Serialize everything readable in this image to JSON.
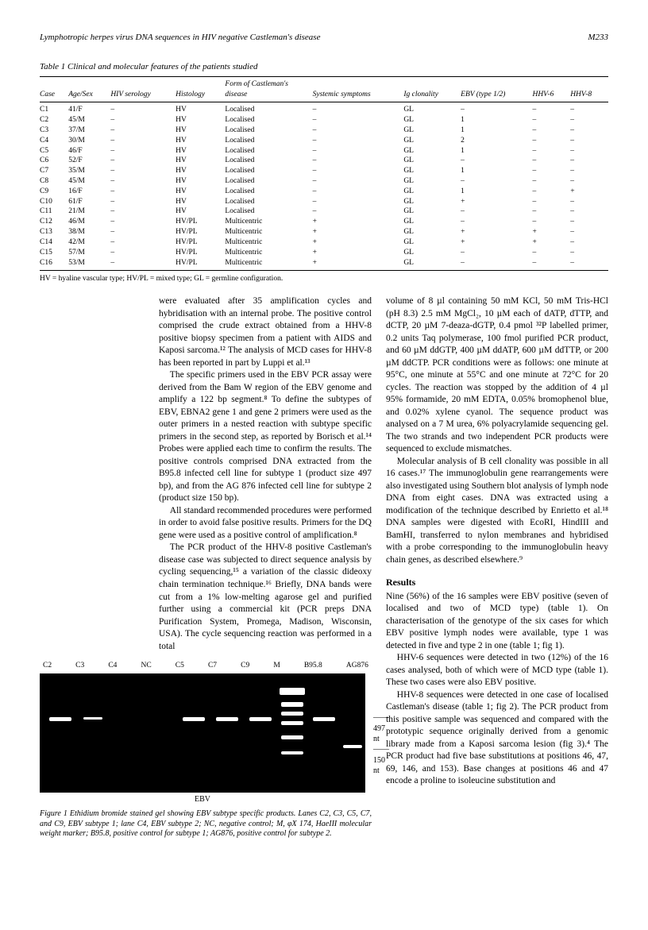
{
  "header": {
    "left": "Lymphotropic herpes virus DNA sequences in HIV negative Castleman's disease",
    "right": "M233"
  },
  "table1": {
    "caption": "Table 1   Clinical and molecular features of the patients studied",
    "columns": [
      "Case",
      "Age/Sex",
      "HIV serology",
      "Histology",
      "Form of Castleman's disease",
      "Systemic symptoms",
      "Ig clonality",
      "EBV (type 1/2)",
      "HHV-6",
      "HHV-8"
    ],
    "rows": [
      [
        "C1",
        "41/F",
        "–",
        "HV",
        "Localised",
        "–",
        "GL",
        "–",
        "–",
        "–"
      ],
      [
        "C2",
        "45/M",
        "–",
        "HV",
        "Localised",
        "–",
        "GL",
        "1",
        "–",
        "–"
      ],
      [
        "C3",
        "37/M",
        "–",
        "HV",
        "Localised",
        "–",
        "GL",
        "1",
        "–",
        "–"
      ],
      [
        "C4",
        "30/M",
        "–",
        "HV",
        "Localised",
        "–",
        "GL",
        "2",
        "–",
        "–"
      ],
      [
        "C5",
        "46/F",
        "–",
        "HV",
        "Localised",
        "–",
        "GL",
        "1",
        "–",
        "–"
      ],
      [
        "C6",
        "52/F",
        "–",
        "HV",
        "Localised",
        "–",
        "GL",
        "–",
        "–",
        "–"
      ],
      [
        "C7",
        "35/M",
        "–",
        "HV",
        "Localised",
        "–",
        "GL",
        "1",
        "–",
        "–"
      ],
      [
        "C8",
        "45/M",
        "–",
        "HV",
        "Localised",
        "–",
        "GL",
        "–",
        "–",
        "–"
      ],
      [
        "C9",
        "16/F",
        "–",
        "HV",
        "Localised",
        "–",
        "GL",
        "1",
        "–",
        "+"
      ],
      [
        "C10",
        "61/F",
        "–",
        "HV",
        "Localised",
        "–",
        "GL",
        "+",
        "–",
        "–"
      ],
      [
        "C11",
        "21/M",
        "–",
        "HV",
        "Localised",
        "–",
        "GL",
        "–",
        "–",
        "–"
      ],
      [
        "C12",
        "46/M",
        "–",
        "HV/PL",
        "Multicentric",
        "+",
        "GL",
        "–",
        "–",
        "–"
      ],
      [
        "C13",
        "38/M",
        "–",
        "HV/PL",
        "Multicentric",
        "+",
        "GL",
        "+",
        "+",
        "–"
      ],
      [
        "C14",
        "42/M",
        "–",
        "HV/PL",
        "Multicentric",
        "+",
        "GL",
        "+",
        "+",
        "–"
      ],
      [
        "C15",
        "57/M",
        "–",
        "HV/PL",
        "Multicentric",
        "+",
        "GL",
        "–",
        "–",
        "–"
      ],
      [
        "C16",
        "53/M",
        "–",
        "HV/PL",
        "Multicentric",
        "+",
        "GL",
        "–",
        "–",
        "–"
      ]
    ],
    "footnote": "HV = hyaline vascular type; HV/PL = mixed type; GL = germline configuration."
  },
  "column_left": {
    "p1": "were evaluated after 35 amplification cycles and hybridisation with an internal probe. The positive control comprised the crude extract obtained from a HHV-8 positive biopsy specimen from a patient with AIDS and Kaposi sarcoma.¹² The analysis of MCD cases for HHV-8 has been reported in part by Luppi et al.¹³",
    "p2": "The specific primers used in the EBV PCR assay were derived from the Bam W region of the EBV genome and amplify a 122 bp segment.⁸ To define the subtypes of EBV, EBNA2 gene 1 and gene 2 primers were used as the outer primers in a nested reaction with subtype specific primers in the second step, as reported by Borisch et al.¹⁴ Probes were applied each time to confirm the results. The positive controls comprised DNA extracted from the B95.8 infected cell line for subtype 1 (product size 497 bp), and from the AG 876 infected cell line for subtype 2 (product size 150 bp).",
    "p3": "All standard recommended procedures were performed in order to avoid false positive results. Primers for the DQ gene were used as a positive control of amplification.⁸",
    "p4": "The PCR product of the HHV-8 positive Castleman's disease case was subjected to direct sequence analysis by cycling sequencing,¹⁵ a variation of the classic dideoxy chain termination technique.¹⁶ Briefly, DNA bands were cut from a 1% low-melting agarose gel and purified further using a commercial kit (PCR preps DNA Purification System, Promega, Madison, Wisconsin, USA). The cycle sequencing reaction was performed in a total"
  },
  "column_right": {
    "p1": "volume of 8 µl containing 50 mM KCl, 50 mM Tris-HCl (pH 8.3) 2.5 mM MgCl₂, 10 µM each of dATP, dTTP, and dCTP, 20 µM 7-deaza-dGTP, 0.4 pmol ³²P labelled primer, 0.2 units Taq polymerase, 100 fmol purified PCR product, and 60 µM ddGTP, 400 µM ddATP, 600 µM ddTTP, or 200 µM ddCTP. PCR conditions were as follows: one minute at 95°C, one minute at 55°C and one minute at 72°C for 20 cycles. The reaction was stopped by the addition of 4 µl 95% formamide, 20 mM EDTA, 0.05% bromophenol blue, and 0.02% xylene cyanol. The sequence product was analysed on a 7 M urea, 6% polyacrylamide sequencing gel. The two strands and two independent PCR products were sequenced to exclude mismatches.",
    "p2": "Molecular analysis of B cell clonality was possible in all 16 cases.¹⁷ The immunoglobulin gene rearrangements were also investigated using Southern blot analysis of lymph node DNA from eight cases. DNA was extracted using a modification of the technique described by Enrietto et al.¹⁸ DNA samples were digested with EcoRI, HindIII and BamHI, transferred to nylon membranes and hybridised with a probe corresponding to the immunoglobulin heavy chain genes, as described elsewhere.⁹",
    "results_head": "Results",
    "p3": "Nine (56%) of the 16 samples were EBV positive (seven of localised and two of MCD type) (table 1). On characterisation of the genotype of the six cases for which EBV positive lymph nodes were available, type 1 was detected in five and type 2 in one (table 1; fig 1).",
    "p4": "HHV-6 sequences were detected in two (12%) of the 16 cases analysed, both of which were of MCD type (table 1). These two cases were also EBV positive.",
    "p5": "HHV-8 sequences were detected in one case of localised Castleman's disease (table 1; fig 2). The PCR product from this positive sample was sequenced and compared with the prototypic sequence originally derived from a genomic library made from a Kaposi sarcoma lesion (fig 3).⁴ The PCR product had five base substitutions at positions 46, 47, 69, 146, and 153). Base changes at positions 46 and 47 encode a proline to isoleucine substitution and"
  },
  "figure1": {
    "lanes": [
      "C2",
      "C3",
      "C4",
      "NC",
      "C5",
      "C7",
      "C9",
      "M",
      "B95.8",
      "AG876"
    ],
    "marker497": "497 nt",
    "marker150": "150 nt",
    "bottom_label": "EBV",
    "caption": "Figure 1   Ethidium bromide stained gel showing EBV subtype specific products. Lanes C2, C3, C5, C7, and C9, EBV subtype 1; lane C4, EBV subtype 2; NC, negative control; M, φX 174, HaeIII molecular weight marker; B95.8, positive control for subtype 1; AG876, positive control for subtype 2."
  }
}
